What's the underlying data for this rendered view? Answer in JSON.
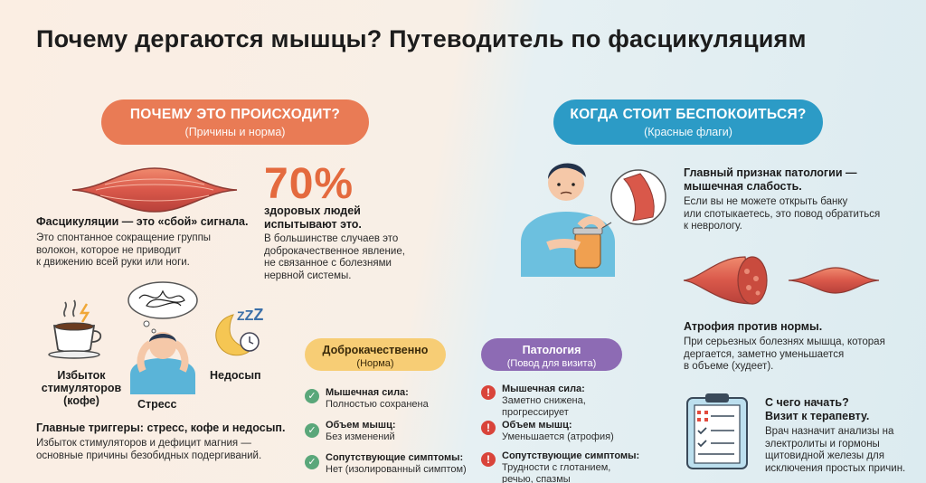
{
  "title": "Почему дергаются мышцы? Путеводитель по фасцикуляциям",
  "left_pill": {
    "main": "ПОЧЕМУ ЭТО ПРОИСХОДИТ?",
    "sub": "(Причины и норма)"
  },
  "right_pill": {
    "main": "КОГДА СТОИТ БЕСПОКОИТЬСЯ?",
    "sub": "(Красные флаги)"
  },
  "fasciculation": {
    "heading": "Фасцикуляции — это «сбой» сигнала.",
    "lines": [
      "Это спонтанное сокращение группы",
      "волокон, которое не приводит",
      "к движению всей руки или ноги."
    ]
  },
  "stat": {
    "value": "70%",
    "heading_lines": [
      "здоровых людей",
      "испытывают это."
    ],
    "lines": [
      "В большинстве случаев это",
      "доброкачественное явление,",
      "не связанное с болезнями",
      "нервной системы."
    ]
  },
  "triggers": {
    "coffee_lines": [
      "Избыток",
      "стимуляторов",
      "(кофе)"
    ],
    "stress": "Стресс",
    "sleep": "Недосып",
    "zzz": "Z",
    "heading": "Главные триггеры: стресс, кофе и недосып.",
    "lines": [
      "Избыток стимуляторов и дефицит магния —",
      "основные причины безобидных подергиваний."
    ]
  },
  "benign": {
    "main": "Доброкачественно",
    "sub": "(Норма)",
    "rows": [
      {
        "h": "Мышечная сила:",
        "t": [
          "Полностью сохранена"
        ]
      },
      {
        "h": "Объем мышц:",
        "t": [
          "Без изменений"
        ]
      },
      {
        "h": "Сопутствующие симптомы:",
        "t": [
          "Нет (изолированный симптом)"
        ]
      }
    ],
    "check": "✓"
  },
  "pathology": {
    "main": "Патология",
    "sub": "(Повод для визита)",
    "rows": [
      {
        "h": "Мышечная сила:",
        "t": [
          "Заметно снижена,",
          "прогрессирует"
        ]
      },
      {
        "h": "Объем мышц:",
        "t": [
          "Уменьшается (атрофия)"
        ]
      },
      {
        "h": "Сопутствующие симптомы:",
        "t": [
          "Трудности с глотанием,",
          "речью, спазмы"
        ]
      }
    ],
    "warn": "!"
  },
  "weakness": {
    "heading_lines": [
      "Главный признак патологии —",
      "мышечная слабость."
    ],
    "lines": [
      "Если вы не можете открыть банку",
      "или спотыкаетесь, это повод обратиться",
      "к неврологу."
    ]
  },
  "atrophy": {
    "heading": "Атрофия против нормы.",
    "lines": [
      "При серьезных болезнях мышца, которая",
      "дергается, заметно уменьшается",
      "в объеме (худеет)."
    ]
  },
  "start": {
    "heading_lines": [
      "С чего начать?",
      "Визит к терапевту."
    ],
    "lines": [
      "Врач назначит анализы на",
      "электролиты и гормоны",
      "щитовидной железы для",
      "исключения простых причин."
    ]
  },
  "colors": {
    "orange": "#e97b55",
    "blue": "#2c9bc6",
    "yellow": "#f7cd75",
    "purple": "#8d6bb4",
    "green": "#5aa77a",
    "red": "#d9443a"
  }
}
